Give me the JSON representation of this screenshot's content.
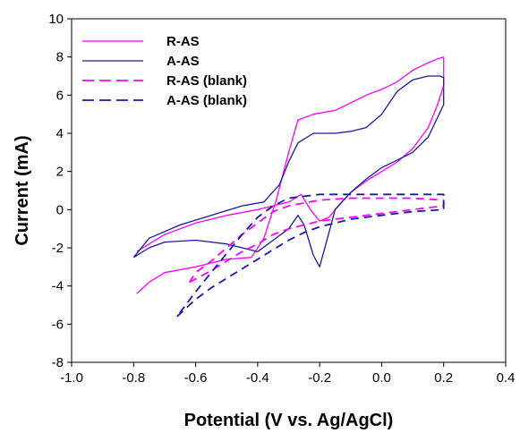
{
  "chart_data": {
    "type": "line",
    "title": "",
    "xlabel": "Potential (V vs. Ag/AgCl)",
    "ylabel": "Current (mA)",
    "xlim": [
      -1.0,
      0.4
    ],
    "ylim": [
      -8,
      10
    ],
    "xticks": [
      "-1.0",
      "-0.8",
      "-0.6",
      "-0.4",
      "-0.2",
      "0.0",
      "0.2",
      "0.4"
    ],
    "yticks": [
      "-8",
      "-6",
      "-4",
      "-2",
      "0",
      "2",
      "4",
      "6",
      "8",
      "10"
    ],
    "grid": false,
    "legend_position": "top-left",
    "series": [
      {
        "name": "R-AS",
        "color": "#ff00ff",
        "dash": "solid",
        "x": [
          -0.79,
          -0.75,
          -0.7,
          -0.6,
          -0.5,
          -0.42,
          -0.38,
          -0.34,
          -0.3,
          -0.27,
          -0.22,
          -0.15,
          -0.1,
          -0.05,
          0.0,
          0.05,
          0.1,
          0.15,
          0.18,
          0.2,
          0.2,
          0.18,
          0.15,
          0.1,
          0.05,
          0.0,
          -0.05,
          -0.1,
          -0.14,
          -0.17,
          -0.2,
          -0.23,
          -0.26,
          -0.3,
          -0.4,
          -0.5,
          -0.6,
          -0.65,
          -0.7,
          -0.75,
          -0.79
        ],
        "y": [
          -4.4,
          -3.8,
          -3.3,
          -3.0,
          -2.6,
          -2.5,
          -1.5,
          0.5,
          3.0,
          4.7,
          5.0,
          5.2,
          5.6,
          6.0,
          6.3,
          6.7,
          7.3,
          7.7,
          7.9,
          8.0,
          6.5,
          5.5,
          4.3,
          3.2,
          2.5,
          2.0,
          1.5,
          0.9,
          0.2,
          -0.4,
          -0.6,
          0.0,
          0.8,
          0.4,
          0.0,
          -0.3,
          -0.7,
          -1.0,
          -1.3,
          -1.8,
          -2.2
        ]
      },
      {
        "name": "A-AS",
        "color": "#1a1aa0",
        "dash": "solid",
        "x": [
          -0.8,
          -0.75,
          -0.65,
          -0.55,
          -0.45,
          -0.38,
          -0.33,
          -0.3,
          -0.27,
          -0.22,
          -0.15,
          -0.1,
          -0.05,
          0.0,
          0.05,
          0.1,
          0.15,
          0.19,
          0.2,
          0.2,
          0.15,
          0.1,
          0.05,
          0.0,
          -0.05,
          -0.1,
          -0.15,
          -0.18,
          -0.2,
          -0.22,
          -0.25,
          -0.27,
          -0.3,
          -0.35,
          -0.4,
          -0.5,
          -0.6,
          -0.7,
          -0.75,
          -0.8
        ],
        "y": [
          -2.5,
          -1.5,
          -0.8,
          -0.3,
          0.2,
          0.4,
          1.3,
          2.5,
          3.5,
          4.0,
          4.0,
          4.1,
          4.3,
          5.0,
          6.2,
          6.8,
          7.0,
          7.0,
          6.9,
          5.5,
          3.8,
          3.0,
          2.6,
          2.2,
          1.6,
          0.9,
          0.0,
          -1.8,
          -3.0,
          -2.4,
          -0.8,
          -0.3,
          -1.0,
          -1.6,
          -2.2,
          -1.8,
          -1.6,
          -1.7,
          -2.0,
          -2.5
        ]
      },
      {
        "name": "R-AS (blank)",
        "color": "#ff00ff",
        "dash": "dashed",
        "x": [
          -0.62,
          -0.55,
          -0.5,
          -0.45,
          -0.4,
          -0.35,
          -0.3,
          -0.25,
          -0.2,
          -0.1,
          0.0,
          0.1,
          0.2,
          0.2,
          0.1,
          0.0,
          -0.1,
          -0.2,
          -0.3,
          -0.35,
          -0.4,
          -0.45,
          -0.5,
          -0.55,
          -0.6,
          -0.62
        ],
        "y": [
          -3.8,
          -3.2,
          -2.7,
          -2.2,
          -1.8,
          -1.3,
          -1.0,
          -0.8,
          -0.6,
          -0.4,
          -0.2,
          0.0,
          0.2,
          0.5,
          0.6,
          0.6,
          0.6,
          0.5,
          0.2,
          -0.1,
          -0.7,
          -1.3,
          -2.0,
          -2.7,
          -3.3,
          -3.8
        ]
      },
      {
        "name": "A-AS (blank)",
        "color": "#1a1aa0",
        "dash": "dashed",
        "x": [
          -0.66,
          -0.6,
          -0.55,
          -0.5,
          -0.45,
          -0.4,
          -0.35,
          -0.3,
          -0.25,
          -0.2,
          -0.15,
          -0.1,
          0.0,
          0.1,
          0.2,
          0.2,
          0.1,
          0.0,
          -0.1,
          -0.2,
          -0.3,
          -0.35,
          -0.4,
          -0.45,
          -0.5,
          -0.55,
          -0.6,
          -0.66
        ],
        "y": [
          -5.6,
          -4.7,
          -4.1,
          -3.6,
          -3.1,
          -2.6,
          -2.1,
          -1.6,
          -1.2,
          -0.9,
          -0.7,
          -0.5,
          -0.3,
          -0.1,
          0.0,
          0.8,
          0.8,
          0.8,
          0.8,
          0.8,
          0.6,
          0.2,
          -0.4,
          -1.3,
          -2.3,
          -3.3,
          -4.3,
          -5.6
        ]
      }
    ]
  }
}
